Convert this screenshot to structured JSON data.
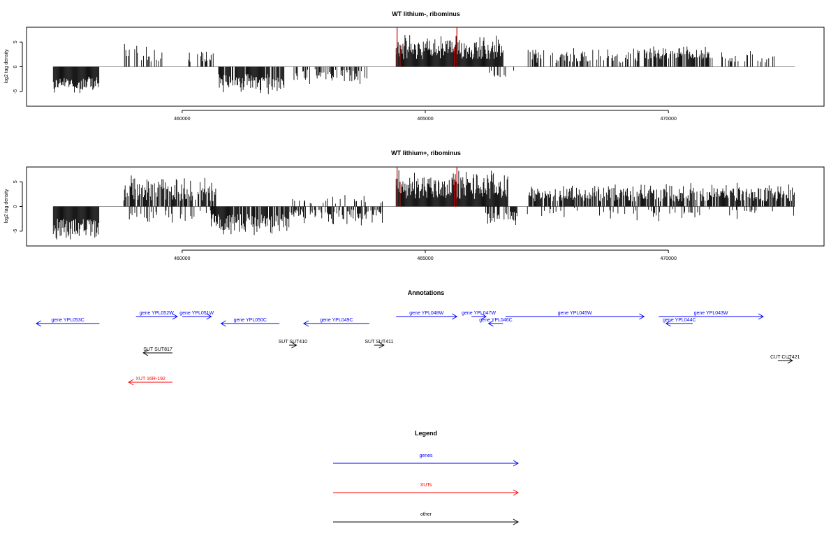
{
  "chart_data": [
    {
      "type": "bar",
      "title": "WT lithium-, ribominus",
      "ylabel": "log2 tag density",
      "xlim": [
        456800,
        473200
      ],
      "ylim": [
        -8,
        8
      ],
      "xticks": [
        460000,
        465000,
        470000
      ],
      "xtick_labels": [
        "460000",
        "465000",
        "470000"
      ],
      "yticks": [
        -5,
        0,
        5
      ],
      "ytick_labels": [
        "-5",
        "0",
        "5"
      ],
      "baseline_color": "#999999",
      "series": [
        {
          "color": "#000000",
          "segments": [
            {
              "start": 457350,
              "end": 458300,
              "sign": -1,
              "min": 2.0,
              "max": 6.2,
              "density": 1.0
            },
            {
              "start": 458800,
              "end": 459600,
              "sign": 1,
              "min": 1.0,
              "max": 5.0,
              "density": 0.45
            },
            {
              "start": 460050,
              "end": 460650,
              "sign": 1,
              "min": 1.0,
              "max": 3.8,
              "density": 0.45
            },
            {
              "start": 460750,
              "end": 462100,
              "sign": -1,
              "min": 1.5,
              "max": 5.8,
              "density": 0.9
            },
            {
              "start": 462300,
              "end": 463800,
              "sign": -1,
              "min": 0.5,
              "max": 4.0,
              "density": 0.45
            },
            {
              "start": 464400,
              "end": 466600,
              "sign": 1,
              "min": 1.5,
              "max": 7.0,
              "density": 1.0
            },
            {
              "start": 466300,
              "end": 466900,
              "sign": -1,
              "min": 0.5,
              "max": 3.0,
              "density": 0.35
            },
            {
              "start": 467100,
              "end": 469400,
              "sign": 1,
              "min": 0.8,
              "max": 4.0,
              "density": 0.4
            },
            {
              "start": 469500,
              "end": 470900,
              "sign": 1,
              "min": 1.5,
              "max": 4.5,
              "density": 0.8
            },
            {
              "start": 470900,
              "end": 472200,
              "sign": 1,
              "min": 0.8,
              "max": 3.5,
              "density": 0.35
            }
          ]
        },
        {
          "color": "#cc0000",
          "points": [
            [
              464420,
              8.0
            ],
            [
              465650,
              8.0
            ],
            [
              464480,
              4.5
            ],
            [
              465600,
              4.0
            ]
          ]
        }
      ]
    },
    {
      "type": "bar",
      "title": "WT lithium+, ribominus",
      "ylabel": "log2 tag density",
      "xlim": [
        456800,
        473200
      ],
      "ylim": [
        -8,
        8
      ],
      "xticks": [
        460000,
        465000,
        470000
      ],
      "xtick_labels": [
        "460000",
        "465000",
        "470000"
      ],
      "yticks": [
        -5,
        0,
        5
      ],
      "ytick_labels": [
        "-5",
        "0",
        "5"
      ],
      "baseline_color": "#999999",
      "series": [
        {
          "color": "#000000",
          "segments": [
            {
              "start": 457350,
              "end": 458300,
              "sign": -1,
              "min": 2.5,
              "max": 7.2,
              "density": 1.0
            },
            {
              "start": 458800,
              "end": 460700,
              "sign": 1,
              "min": 1.0,
              "max": 6.5,
              "density": 0.85
            },
            {
              "start": 458900,
              "end": 460700,
              "sign": -1,
              "min": 0.5,
              "max": 3.5,
              "density": 0.25
            },
            {
              "start": 460600,
              "end": 462200,
              "sign": -1,
              "min": 1.5,
              "max": 6.5,
              "density": 0.9
            },
            {
              "start": 462200,
              "end": 464200,
              "sign": -1,
              "min": 0.5,
              "max": 4.0,
              "density": 0.6
            },
            {
              "start": 462200,
              "end": 464200,
              "sign": 1,
              "min": 0.5,
              "max": 2.5,
              "density": 0.2
            },
            {
              "start": 464400,
              "end": 466700,
              "sign": 1,
              "min": 1.5,
              "max": 8.0,
              "density": 1.0
            },
            {
              "start": 466200,
              "end": 466900,
              "sign": -1,
              "min": 1.0,
              "max": 4.2,
              "density": 0.7
            },
            {
              "start": 467100,
              "end": 472600,
              "sign": 1,
              "min": 1.0,
              "max": 5.0,
              "density": 0.75
            },
            {
              "start": 467100,
              "end": 472600,
              "sign": -1,
              "min": 0.3,
              "max": 3.0,
              "density": 0.12
            }
          ]
        },
        {
          "color": "#cc0000",
          "points": [
            [
              464420,
              8.0
            ],
            [
              465650,
              8.0
            ],
            [
              464480,
              5.0
            ],
            [
              465600,
              5.5
            ]
          ]
        }
      ]
    }
  ],
  "annotations": {
    "title": "Annotations",
    "features": [
      {
        "label": "gene YPL053C",
        "start": 458300,
        "end": 457000,
        "strand": "-",
        "row": 1,
        "color": "#0000ff"
      },
      {
        "label": "gene YPL052W",
        "start": 459050,
        "end": 459900,
        "strand": "+",
        "row": 0,
        "color": "#0000ff"
      },
      {
        "label": "gene YPL051W",
        "start": 460000,
        "end": 460600,
        "strand": "+",
        "row": 0,
        "color": "#0000ff"
      },
      {
        "label": "gene YPL050C",
        "start": 462000,
        "end": 460800,
        "strand": "-",
        "row": 1,
        "color": "#0000ff"
      },
      {
        "label": "gene YPL049C",
        "start": 463850,
        "end": 462500,
        "strand": "-",
        "row": 1,
        "color": "#0000ff"
      },
      {
        "label": "gene YPL048W",
        "start": 464400,
        "end": 465650,
        "strand": "+",
        "row": 0,
        "color": "#0000ff"
      },
      {
        "label": "gene YPL047W",
        "start": 465950,
        "end": 466250,
        "strand": "+",
        "row": 0,
        "color": "#0000ff"
      },
      {
        "label": "gene YPL046C",
        "start": 466600,
        "end": 466300,
        "strand": "-",
        "row": 1,
        "color": "#0000ff"
      },
      {
        "label": "gene YPL045W",
        "start": 466650,
        "end": 469500,
        "strand": "+",
        "row": 0,
        "color": "#0000ff"
      },
      {
        "label": "gene YPL044C",
        "start": 470500,
        "end": 469950,
        "strand": "-",
        "row": 1,
        "color": "#0000ff"
      },
      {
        "label": "gene YPL043W",
        "start": 469800,
        "end": 471950,
        "strand": "+",
        "row": 0,
        "color": "#0000ff"
      },
      {
        "label": "SUT SUT817",
        "start": 459800,
        "end": 459200,
        "strand": "-",
        "row": 4,
        "color": "#000000"
      },
      {
        "label": "SUT SUT410",
        "start": 462200,
        "end": 462350,
        "strand": "+",
        "row": 3,
        "color": "#000000"
      },
      {
        "label": "SUT SUT411",
        "start": 463950,
        "end": 464150,
        "strand": "+",
        "row": 3,
        "color": "#000000"
      },
      {
        "label": "CUT CUT421",
        "start": 472250,
        "end": 472550,
        "strand": "+",
        "row": 5,
        "color": "#000000"
      },
      {
        "label": "XUT 16R-192",
        "start": 459800,
        "end": 458900,
        "strand": "-",
        "row": 7,
        "color": "#ff0000"
      }
    ]
  },
  "legend": {
    "title": "Legend",
    "items": [
      {
        "label": "genes",
        "color": "#0000ff"
      },
      {
        "label": "XUTs",
        "color": "#ff0000"
      },
      {
        "label": "other",
        "color": "#000000"
      }
    ]
  }
}
